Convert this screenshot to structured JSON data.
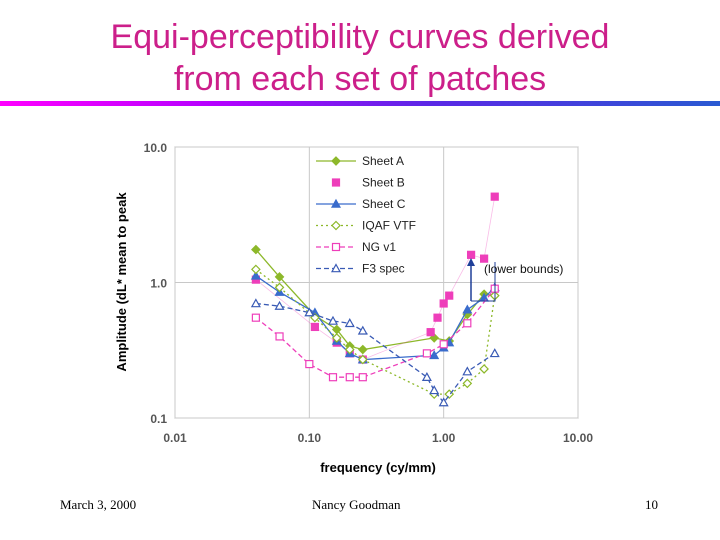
{
  "slide": {
    "title_line1": "Equi-perceptibility curves derived",
    "title_line2": "from each set of patches",
    "footer_date": "March 3, 2000",
    "footer_author": "Nancy Goodman",
    "footer_page": "10",
    "title_color": "#cc1f8a"
  },
  "chart_data": {
    "type": "line",
    "title": "",
    "xlabel": "frequency (cy/mm)",
    "ylabel": "Amplitude (dL* mean to peak",
    "xscale": "log",
    "yscale": "log",
    "xlim": [
      0.01,
      10
    ],
    "ylim": [
      0.1,
      10
    ],
    "x_ticks": [
      "0.01",
      "0.10",
      "1.00",
      "10.00"
    ],
    "y_ticks": [
      "0.1",
      "1.0",
      "10.0"
    ],
    "grid": true,
    "legend_position": "top-right inside plot",
    "annotation": "(lower bounds)",
    "series": [
      {
        "name": "Sheet A",
        "color": "#8db82a",
        "dash": "solid",
        "marker": "diamond",
        "filled": true,
        "x": [
          0.04,
          0.06,
          0.11,
          0.16,
          0.2,
          0.25,
          0.85,
          1.1,
          1.5,
          2.0,
          2.4
        ],
        "y": [
          1.75,
          1.1,
          0.57,
          0.45,
          0.34,
          0.32,
          0.39,
          0.37,
          0.58,
          0.82,
          0.8
        ]
      },
      {
        "name": "Sheet B",
        "color": "#ee3eba",
        "dash": "none",
        "marker": "square",
        "filled": true,
        "x": [
          0.04,
          0.11,
          0.16,
          0.2,
          0.25,
          0.8,
          0.9,
          1.0,
          1.1,
          1.6,
          2.0,
          2.4
        ],
        "y": [
          1.05,
          0.47,
          0.36,
          0.3,
          0.27,
          0.43,
          0.55,
          0.7,
          0.8,
          1.6,
          1.5,
          4.3
        ]
      },
      {
        "name": "Sheet C",
        "color": "#3a6ccc",
        "dash": "solid",
        "marker": "triangle",
        "filled": true,
        "x": [
          0.04,
          0.06,
          0.11,
          0.16,
          0.2,
          0.25,
          0.85,
          1.0,
          1.1,
          1.5,
          2.0,
          2.4
        ],
        "y": [
          1.12,
          0.85,
          0.6,
          0.37,
          0.3,
          0.27,
          0.29,
          0.33,
          0.36,
          0.63,
          0.77,
          0.92
        ]
      },
      {
        "name": "IQAF VTF",
        "color": "#8db82a",
        "dash": "dot",
        "marker": "diamond",
        "filled": false,
        "x": [
          0.04,
          0.06,
          0.11,
          0.16,
          0.2,
          0.25,
          0.85,
          1.1,
          1.5,
          2.0,
          2.4
        ],
        "y": [
          1.25,
          0.92,
          0.55,
          0.39,
          0.32,
          0.27,
          0.15,
          0.15,
          0.18,
          0.23,
          0.8
        ]
      },
      {
        "name": "NG v1",
        "color": "#ee3eba",
        "dash": "dash",
        "marker": "square",
        "filled": false,
        "x": [
          0.04,
          0.06,
          0.1,
          0.15,
          0.2,
          0.25,
          0.75,
          1.0,
          1.5,
          2.4
        ],
        "y": [
          0.55,
          0.4,
          0.25,
          0.2,
          0.2,
          0.2,
          0.3,
          0.35,
          0.5,
          0.9
        ]
      },
      {
        "name": "F3 spec",
        "color": "#3a5bb5",
        "dash": "dash",
        "marker": "triangle",
        "filled": false,
        "x": [
          0.04,
          0.06,
          0.1,
          0.15,
          0.2,
          0.25,
          0.75,
          0.85,
          1.0,
          1.5,
          2.4
        ],
        "y": [
          0.7,
          0.67,
          0.6,
          0.52,
          0.5,
          0.44,
          0.2,
          0.16,
          0.13,
          0.22,
          0.3
        ]
      }
    ]
  }
}
